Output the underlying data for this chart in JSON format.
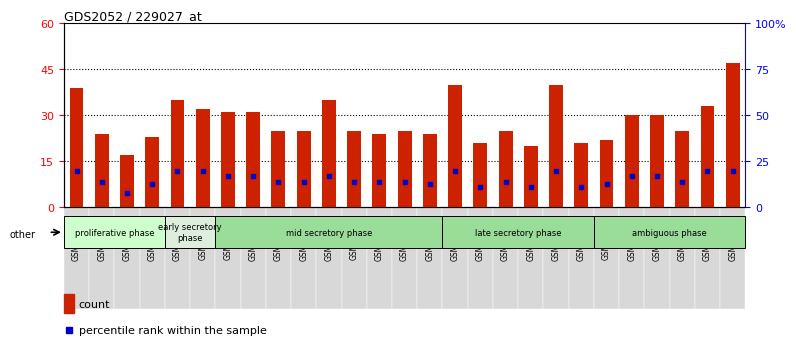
{
  "title": "GDS2052 / 229027_at",
  "samples": [
    "GSM109814",
    "GSM109815",
    "GSM109816",
    "GSM109817",
    "GSM109820",
    "GSM109821",
    "GSM109822",
    "GSM109824",
    "GSM109825",
    "GSM109826",
    "GSM109827",
    "GSM109828",
    "GSM109829",
    "GSM109830",
    "GSM109831",
    "GSM109834",
    "GSM109835",
    "GSM109836",
    "GSM109837",
    "GSM109838",
    "GSM109839",
    "GSM109818",
    "GSM109819",
    "GSM109823",
    "GSM109832",
    "GSM109833",
    "GSM109840"
  ],
  "counts": [
    39,
    24,
    17,
    23,
    35,
    32,
    31,
    31,
    25,
    25,
    35,
    25,
    24,
    25,
    24,
    40,
    21,
    25,
    20,
    40,
    21,
    22,
    30,
    30,
    25,
    33,
    47
  ],
  "percentile_ranks": [
    20,
    14,
    8,
    13,
    20,
    20,
    17,
    17,
    14,
    14,
    17,
    14,
    14,
    14,
    13,
    20,
    11,
    14,
    11,
    20,
    11,
    13,
    17,
    17,
    14,
    20,
    20
  ],
  "left_yticks": [
    0,
    15,
    30,
    45,
    60
  ],
  "right_yticks": [
    0,
    25,
    50,
    75,
    100
  ],
  "bar_color": "#cc2200",
  "marker_color": "#0000cc",
  "plot_bg": "#ffffff",
  "other_label": "other",
  "legend_count": "count",
  "legend_percentile": "percentile rank within the sample",
  "phase_names": [
    "proliferative phase",
    "early secretory\nphase",
    "mid secretory phase",
    "late secretory phase",
    "ambiguous phase"
  ],
  "phase_counts": [
    4,
    2,
    9,
    6,
    6
  ],
  "phase_colors": [
    "#ccffcc",
    "#ddeedd",
    "#99dd99",
    "#99dd99",
    "#99dd99"
  ]
}
